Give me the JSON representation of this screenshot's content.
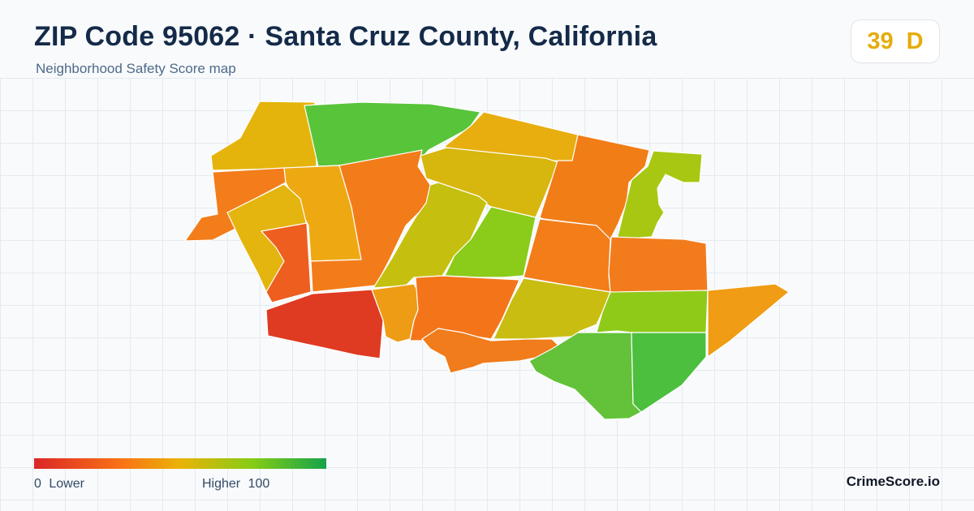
{
  "header": {
    "title": "ZIP Code 95062 · Santa Cruz County, California",
    "subtitle": "Neighborhood Safety Score map"
  },
  "score": {
    "value": "39",
    "grade": "D",
    "color": "#e5ac0a"
  },
  "legend": {
    "min_label": "0  Lower",
    "max_label": "Higher  100",
    "color_low": "#dc2626",
    "color_high": "#16a34a"
  },
  "brand": "CrimeScore.io",
  "map": {
    "region_count": 26
  }
}
